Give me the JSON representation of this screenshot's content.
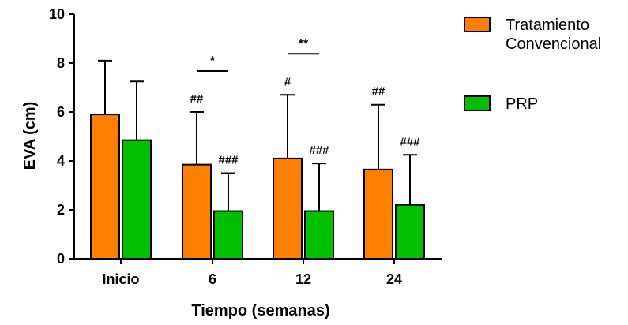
{
  "chart_data": {
    "type": "bar",
    "title": "",
    "xlabel": "Tiempo (semanas)",
    "ylabel": "EVA (cm)",
    "ylim": [
      0,
      10
    ],
    "yticks": [
      "0",
      "2",
      "4",
      "6",
      "8",
      "10"
    ],
    "categories": [
      "Inicio",
      "6",
      "12",
      "24"
    ],
    "series": [
      {
        "name": "Tratamiento Convencional",
        "name_lines": [
          "Tratamiento",
          "Convencional"
        ],
        "color": "#FF8000",
        "values": [
          5.9,
          3.85,
          4.1,
          3.65
        ],
        "error_upper": [
          8.1,
          6.0,
          6.7,
          6.3
        ],
        "annotations": [
          "",
          "##",
          "#",
          "##"
        ]
      },
      {
        "name": "PRP",
        "name_lines": [
          "PRP"
        ],
        "color": "#00C000",
        "values": [
          4.85,
          1.95,
          1.95,
          2.2
        ],
        "error_upper": [
          7.25,
          3.5,
          3.9,
          4.25
        ],
        "annotations": [
          "",
          "###",
          "###",
          "###"
        ]
      }
    ],
    "significance": [
      {
        "category": "6",
        "label": "*"
      },
      {
        "category": "12",
        "label": "**"
      }
    ],
    "legend": "right",
    "grid": false
  }
}
